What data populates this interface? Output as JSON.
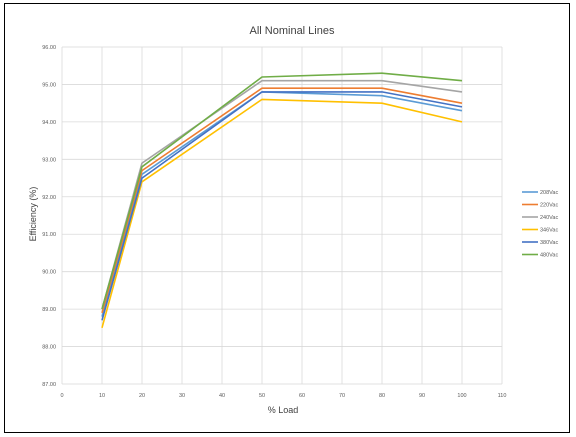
{
  "chart_data": {
    "type": "line",
    "title": "All Nominal Lines",
    "xlabel": "% Load",
    "ylabel": "Efficiency (%)",
    "xlim": [
      0,
      110
    ],
    "ylim": [
      87.0,
      96.0
    ],
    "x_ticks": [
      "0",
      "10",
      "20",
      "30",
      "40",
      "50",
      "60",
      "70",
      "80",
      "90",
      "100",
      "110"
    ],
    "y_ticks": [
      "87.00",
      "88.00",
      "89.00",
      "90.00",
      "91.00",
      "92.00",
      "93.00",
      "94.00",
      "95.00",
      "96.00"
    ],
    "grid": true,
    "legend_position": "right",
    "x": [
      10,
      20,
      50,
      80,
      100
    ],
    "series": [
      {
        "name": "208Vac",
        "color": "#5b9bd5",
        "values": [
          88.8,
          92.6,
          94.8,
          94.7,
          94.3
        ]
      },
      {
        "name": "220Vac",
        "color": "#ed7d31",
        "values": [
          88.9,
          92.7,
          94.9,
          94.9,
          94.5
        ]
      },
      {
        "name": "240Vac",
        "color": "#a5a5a5",
        "values": [
          89.0,
          92.9,
          95.1,
          95.1,
          94.8
        ]
      },
      {
        "name": "346Vac",
        "color": "#ffc000",
        "values": [
          88.5,
          92.4,
          94.6,
          94.5,
          94.0
        ]
      },
      {
        "name": "380Vac",
        "color": "#4472c4",
        "values": [
          88.7,
          92.5,
          94.8,
          94.8,
          94.4
        ]
      },
      {
        "name": "480Vac",
        "color": "#70ad47",
        "values": [
          89.0,
          92.8,
          95.2,
          95.3,
          95.1
        ]
      }
    ]
  }
}
